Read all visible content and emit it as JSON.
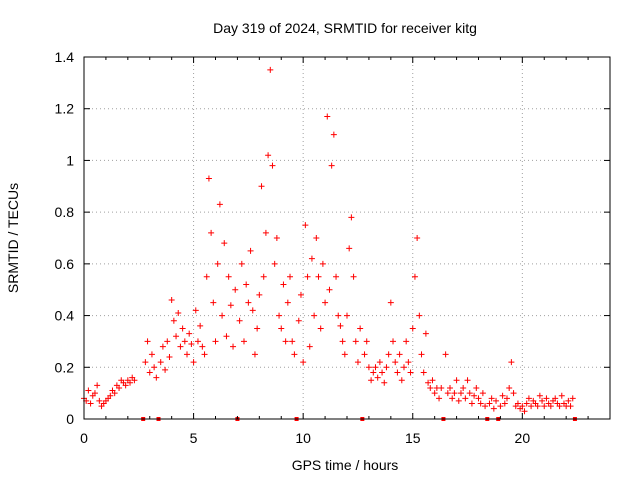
{
  "chart_data": {
    "type": "scatter",
    "title": "Day 319 of 2024, SRMTID for receiver kitg",
    "xlabel": "GPS time / hours",
    "ylabel": "SRMTID / TECUs",
    "xlim": [
      0,
      24
    ],
    "ylim": [
      0,
      1.4
    ],
    "xticks": [
      0,
      5,
      10,
      15,
      20
    ],
    "xtick_labels": [
      "0",
      "5",
      "10",
      "15",
      "20"
    ],
    "yticks": [
      0,
      0.2,
      0.4,
      0.6,
      0.8,
      1.0,
      1.2,
      1.4
    ],
    "ytick_labels": [
      "0",
      "0.2",
      "0.4",
      "0.6",
      "0.8",
      "1",
      "1.2",
      "1.4"
    ],
    "grid": true,
    "marker": "+",
    "color": "#ff0000",
    "gap_markers_x": [
      2.7,
      3.4,
      7.0,
      9.7,
      12.7,
      16.4,
      18.4,
      18.9,
      22.4
    ],
    "series": [
      {
        "name": "SRMTID",
        "x": [
          0.0,
          0.1,
          0.2,
          0.3,
          0.4,
          0.5,
          0.6,
          0.7,
          0.8,
          0.9,
          1.0,
          1.1,
          1.2,
          1.3,
          1.4,
          1.5,
          1.6,
          1.7,
          1.8,
          1.9,
          2.0,
          2.1,
          2.2,
          2.3,
          2.8,
          2.9,
          3.0,
          3.1,
          3.2,
          3.3,
          3.5,
          3.6,
          3.7,
          3.8,
          3.9,
          4.0,
          4.1,
          4.2,
          4.3,
          4.4,
          4.5,
          4.6,
          4.7,
          4.8,
          4.9,
          5.0,
          5.1,
          5.2,
          5.3,
          5.4,
          5.5,
          5.6,
          5.7,
          5.8,
          5.9,
          6.0,
          6.1,
          6.2,
          6.3,
          6.4,
          6.5,
          6.6,
          6.7,
          6.8,
          6.9,
          7.1,
          7.2,
          7.3,
          7.4,
          7.5,
          7.6,
          7.7,
          7.8,
          7.9,
          8.0,
          8.1,
          8.2,
          8.3,
          8.4,
          8.5,
          8.6,
          8.7,
          8.8,
          8.9,
          9.0,
          9.1,
          9.2,
          9.3,
          9.4,
          9.5,
          9.6,
          9.8,
          9.9,
          10.0,
          10.1,
          10.2,
          10.3,
          10.4,
          10.5,
          10.6,
          10.7,
          10.8,
          10.9,
          11.0,
          11.1,
          11.2,
          11.3,
          11.4,
          11.5,
          11.6,
          11.7,
          11.8,
          11.9,
          12.0,
          12.1,
          12.2,
          12.3,
          12.4,
          12.5,
          12.6,
          12.8,
          12.9,
          13.0,
          13.1,
          13.2,
          13.3,
          13.4,
          13.5,
          13.6,
          13.7,
          13.8,
          13.9,
          14.0,
          14.1,
          14.2,
          14.3,
          14.4,
          14.5,
          14.6,
          14.7,
          14.8,
          14.9,
          15.0,
          15.1,
          15.2,
          15.3,
          15.4,
          15.5,
          15.6,
          15.7,
          15.8,
          15.9,
          16.0,
          16.1,
          16.2,
          16.3,
          16.5,
          16.6,
          16.7,
          16.8,
          16.9,
          17.0,
          17.1,
          17.2,
          17.3,
          17.4,
          17.5,
          17.6,
          17.7,
          17.8,
          17.9,
          18.0,
          18.1,
          18.2,
          18.3,
          18.5,
          18.6,
          18.7,
          18.8,
          19.0,
          19.1,
          19.2,
          19.3,
          19.4,
          19.5,
          19.6,
          19.7,
          19.8,
          19.9,
          20.0,
          20.1,
          20.2,
          20.3,
          20.4,
          20.5,
          20.6,
          20.7,
          20.8,
          20.9,
          21.0,
          21.1,
          21.2,
          21.3,
          21.4,
          21.5,
          21.6,
          21.7,
          21.8,
          21.9,
          22.0,
          22.1,
          22.2,
          22.3
        ],
        "y": [
          0.08,
          0.07,
          0.11,
          0.06,
          0.09,
          0.1,
          0.13,
          0.07,
          0.05,
          0.06,
          0.07,
          0.08,
          0.09,
          0.11,
          0.1,
          0.13,
          0.12,
          0.15,
          0.14,
          0.13,
          0.15,
          0.14,
          0.16,
          0.15,
          0.22,
          0.3,
          0.18,
          0.25,
          0.2,
          0.16,
          0.22,
          0.28,
          0.19,
          0.3,
          0.24,
          0.46,
          0.38,
          0.32,
          0.41,
          0.28,
          0.35,
          0.3,
          0.25,
          0.33,
          0.29,
          0.22,
          0.42,
          0.3,
          0.36,
          0.28,
          0.25,
          0.55,
          0.93,
          0.72,
          0.45,
          0.3,
          0.6,
          0.83,
          0.4,
          0.68,
          0.32,
          0.55,
          0.44,
          0.28,
          0.5,
          0.38,
          0.6,
          0.3,
          0.52,
          0.45,
          0.65,
          0.42,
          0.25,
          0.35,
          0.48,
          0.9,
          0.55,
          0.72,
          1.02,
          1.35,
          0.98,
          0.6,
          0.7,
          0.4,
          0.35,
          0.52,
          0.3,
          0.45,
          0.55,
          0.3,
          0.25,
          0.38,
          0.48,
          0.22,
          0.75,
          0.55,
          0.28,
          0.62,
          0.4,
          0.7,
          0.55,
          0.35,
          0.6,
          0.45,
          1.17,
          0.5,
          0.98,
          1.1,
          0.55,
          0.4,
          0.36,
          0.3,
          0.25,
          0.4,
          0.66,
          0.78,
          0.55,
          0.3,
          0.22,
          0.35,
          0.25,
          0.3,
          0.2,
          0.15,
          0.18,
          0.2,
          0.16,
          0.22,
          0.18,
          0.14,
          0.2,
          0.25,
          0.45,
          0.3,
          0.22,
          0.18,
          0.25,
          0.15,
          0.2,
          0.3,
          0.22,
          0.18,
          0.35,
          0.55,
          0.7,
          0.4,
          0.25,
          0.18,
          0.33,
          0.14,
          0.12,
          0.15,
          0.1,
          0.12,
          0.08,
          0.12,
          0.25,
          0.1,
          0.12,
          0.08,
          0.1,
          0.15,
          0.07,
          0.1,
          0.12,
          0.08,
          0.15,
          0.1,
          0.06,
          0.09,
          0.12,
          0.08,
          0.06,
          0.1,
          0.05,
          0.06,
          0.08,
          0.04,
          0.07,
          0.05,
          0.09,
          0.06,
          0.08,
          0.12,
          0.22,
          0.1,
          0.05,
          0.06,
          0.04,
          0.05,
          0.03,
          0.06,
          0.08,
          0.05,
          0.07,
          0.06,
          0.05,
          0.09,
          0.07,
          0.05,
          0.08,
          0.06,
          0.05,
          0.07,
          0.08,
          0.06,
          0.05,
          0.09,
          0.06,
          0.05,
          0.07,
          0.05,
          0.08
        ]
      }
    ]
  }
}
